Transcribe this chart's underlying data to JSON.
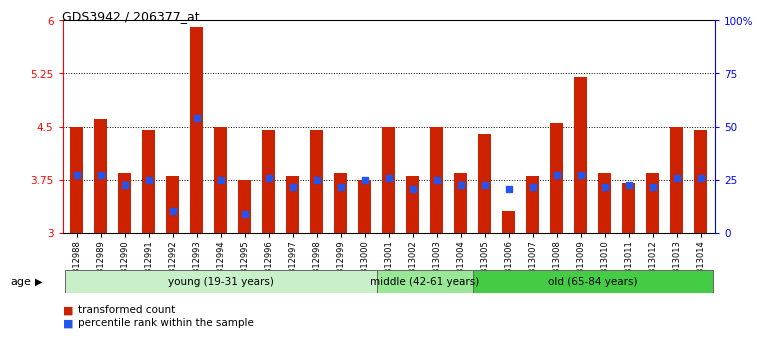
{
  "title": "GDS3942 / 206377_at",
  "samples": [
    "GSM812988",
    "GSM812989",
    "GSM812990",
    "GSM812991",
    "GSM812992",
    "GSM812993",
    "GSM812994",
    "GSM812995",
    "GSM812996",
    "GSM812997",
    "GSM812998",
    "GSM812999",
    "GSM813000",
    "GSM813001",
    "GSM813002",
    "GSM813003",
    "GSM813004",
    "GSM813005",
    "GSM813006",
    "GSM813007",
    "GSM813008",
    "GSM813009",
    "GSM813010",
    "GSM813011",
    "GSM813012",
    "GSM813013",
    "GSM813014"
  ],
  "bar_values": [
    4.5,
    4.6,
    3.85,
    4.45,
    3.8,
    5.9,
    4.5,
    3.75,
    4.45,
    3.8,
    4.45,
    3.85,
    3.75,
    4.5,
    3.8,
    4.5,
    3.85,
    4.4,
    3.3,
    3.8,
    4.55,
    5.2,
    3.85,
    3.7,
    3.85,
    4.5,
    4.45
  ],
  "percentile_values": [
    3.82,
    3.82,
    3.68,
    3.75,
    3.3,
    4.62,
    3.75,
    3.27,
    3.78,
    3.65,
    3.75,
    3.65,
    3.75,
    3.78,
    3.62,
    3.75,
    3.68,
    3.68,
    3.62,
    3.65,
    3.82,
    3.82,
    3.65,
    3.68,
    3.65,
    3.78,
    3.78
  ],
  "groups": [
    {
      "label": "young (19-31 years)",
      "start": 0,
      "end": 13,
      "color": "#c8f0c8"
    },
    {
      "label": "middle (42-61 years)",
      "start": 13,
      "end": 17,
      "color": "#98e898"
    },
    {
      "label": "old (65-84 years)",
      "start": 17,
      "end": 27,
      "color": "#44cc44"
    }
  ],
  "ylim_left": [
    3.0,
    6.0
  ],
  "yticks_left": [
    3.0,
    3.75,
    4.5,
    5.25,
    6.0
  ],
  "ytick_labels_left": [
    "3",
    "3.75",
    "4.5",
    "5.25",
    "6"
  ],
  "ylim_right": [
    0,
    100
  ],
  "yticks_right": [
    0,
    25,
    50,
    75,
    100
  ],
  "ytick_labels_right": [
    "0",
    "25",
    "50",
    "75",
    "100%"
  ],
  "bar_color": "#cc2200",
  "dot_color": "#2255ee",
  "bar_width": 0.55,
  "background_color": "#ffffff",
  "plot_bg_color": "#ffffff",
  "age_label": "age",
  "legend": [
    {
      "label": "transformed count",
      "color": "#cc2200"
    },
    {
      "label": "percentile rank within the sample",
      "color": "#2255ee"
    }
  ]
}
